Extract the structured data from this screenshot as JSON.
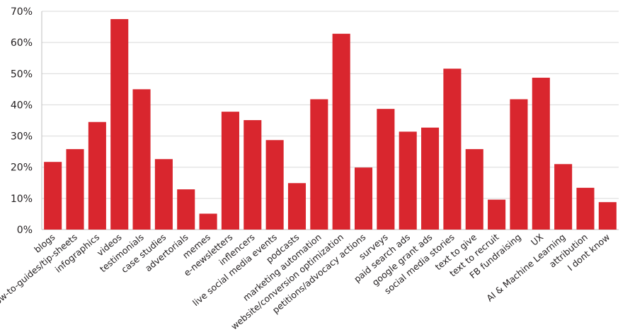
{
  "chart_data": {
    "type": "bar",
    "title": "",
    "xlabel": "",
    "ylabel": "",
    "ylim": [
      0,
      70
    ],
    "y_tick_values": [
      0,
      10,
      20,
      30,
      40,
      50,
      60,
      70
    ],
    "y_tick_labels": [
      "0%",
      "10%",
      "20%",
      "30%",
      "40%",
      "50%",
      "60%",
      "70%"
    ],
    "grid": true,
    "legend": "none",
    "bar_color": "#d9262e",
    "categories": [
      "blogs",
      "how-to-guides/tip-sheets",
      "infographics",
      "videos",
      "testimonials",
      "case studies",
      "advertorials",
      "memes",
      "e-newsletters",
      "inflencers",
      "live social media events",
      "podcasts",
      "marketing automation",
      "website/conversion optimization",
      "petitions/advocacy actions",
      "surveys",
      "paid search ads",
      "google grant ads",
      "social media stories",
      "text to give",
      "text to recruit",
      "FB fundraising",
      "UX",
      "AI & Machine Learning",
      "attribution",
      "I dont know"
    ],
    "values": [
      21.7,
      25.8,
      34.5,
      67.5,
      45.0,
      22.6,
      12.9,
      5.1,
      37.8,
      35.1,
      28.7,
      14.9,
      41.8,
      62.8,
      19.9,
      38.7,
      31.4,
      32.7,
      51.6,
      25.8,
      9.6,
      41.8,
      48.7,
      21.0,
      13.4,
      8.8
    ]
  }
}
